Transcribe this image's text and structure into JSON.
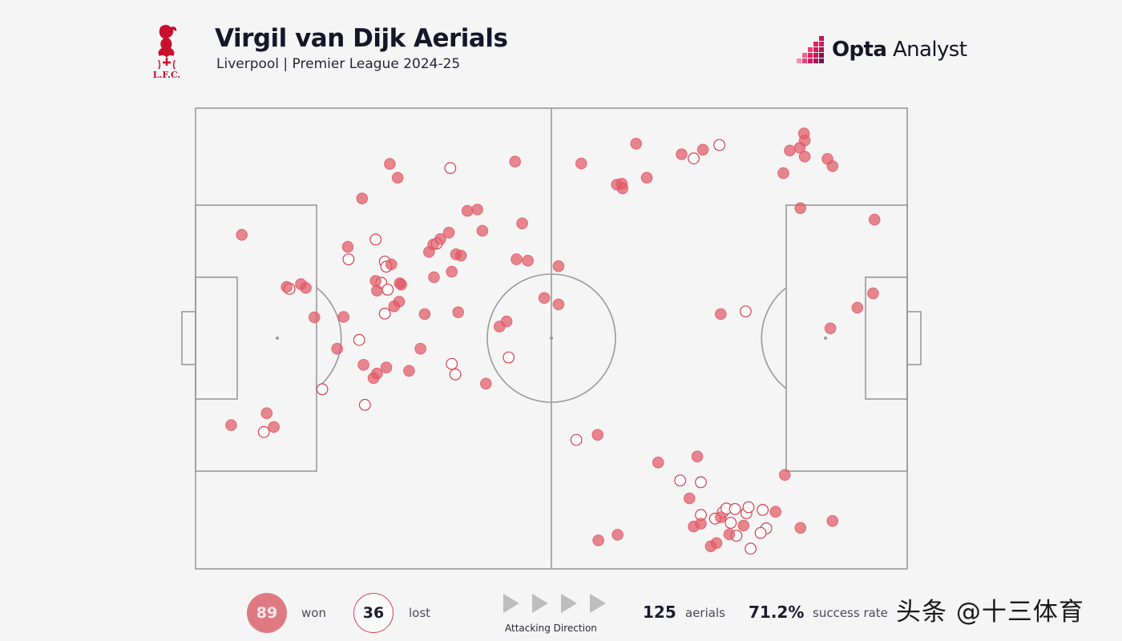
{
  "header": {
    "title": "Virgil van Dijk Aerials",
    "subtitle": "Liverpool | Premier League 2024-25",
    "club_logo_text": "L.F.C.",
    "brand_bold": "Opta",
    "brand_light": " Analyst"
  },
  "colors": {
    "won": "#e05a66",
    "lost_stroke": "#d6404c",
    "pitch_line": "#9a9a9a",
    "background": "#f5f5f5",
    "badge_won": "#e07a82"
  },
  "chart_data": {
    "type": "scatter",
    "axes_units": "pitch length/width percent (0-100), attacking left to right",
    "xlim": [
      0,
      100
    ],
    "ylim": [
      0,
      100
    ],
    "series": [
      {
        "name": "won",
        "points": [
          [
            27.5,
            6.5
          ],
          [
            38.8,
            12.8
          ],
          [
            68.8,
            5.0
          ],
          [
            66.2,
            10.0
          ],
          [
            69.2,
            11.0
          ],
          [
            38.2,
            14.8
          ],
          [
            39.0,
            15.5
          ],
          [
            45.4,
            16.7
          ],
          [
            52.2,
            19.9
          ],
          [
            30.1,
            21.4
          ],
          [
            19.6,
            23.4
          ],
          [
            37.5,
            25.3
          ],
          [
            43.0,
            27.9
          ],
          [
            42.0,
            28.6
          ],
          [
            45.3,
            20.8
          ],
          [
            55.7,
            23.6
          ],
          [
            57.6,
            25.5
          ],
          [
            56.3,
            26.8
          ],
          [
            58.6,
            25.0
          ],
          [
            39.6,
            25.5
          ],
          [
            38.0,
            28.7
          ],
          [
            33.9,
            27.5
          ],
          [
            38.3,
            28.9
          ],
          [
            12.1,
            27.3
          ],
          [
            15.1,
            28.4
          ],
          [
            57.0,
            30.0
          ],
          [
            52.2,
            31.6
          ],
          [
            44.7,
            32.2
          ],
          [
            31.2,
            32.8
          ],
          [
            29.6,
            33.4
          ],
          [
            36.7,
            33.5
          ],
          [
            28.4,
            34.4
          ],
          [
            27.0,
            35.6
          ],
          [
            31.7,
            36.6
          ],
          [
            32.0,
            37.3
          ],
          [
            44.3,
            36.9
          ],
          [
            26.6,
            40.3
          ],
          [
            22.3,
            38.2
          ],
          [
            22.0,
            39.6
          ],
          [
            35.5,
            36.0
          ],
          [
            59.8,
            40.8
          ],
          [
            11.6,
            44.9
          ],
          [
            25.0,
            45.9
          ],
          [
            42.6,
            51.0
          ],
          [
            47.4,
            42.7
          ],
          [
            46.3,
            43.7
          ],
          [
            32.8,
            45.1
          ],
          [
            33.1,
            46.7
          ],
          [
            41.2,
            49.0
          ],
          [
            12.0,
            54.2
          ],
          [
            34.3,
            51.0
          ],
          [
            16.6,
            59.2
          ],
          [
            16.4,
            59.9
          ],
          [
            7.7,
            61.9
          ],
          [
            17.4,
            60.0
          ],
          [
            15.1,
            63.4
          ],
          [
            10.0,
            68.3
          ],
          [
            9.0,
            71.3
          ],
          [
            44.7,
            73.8
          ],
          [
            14.1,
            82.6
          ],
          [
            21.7,
            85.0
          ],
          [
            9.2,
            83.5
          ],
          [
            8.6,
            84.9
          ],
          [
            10.5,
            85.6
          ],
          [
            5.5,
            85.5
          ],
          [
            7.0,
            85.6
          ],
          [
            11.0,
            88.8
          ],
          [
            12.6,
            89.5
          ],
          [
            47.8,
            89.2
          ],
          [
            43.3,
            93.0
          ],
          [
            24.2,
            95.4
          ],
          [
            40.2,
            95.2
          ],
          [
            70.9,
            56.5
          ],
          [
            76.9,
            65.0
          ],
          [
            75.6,
            70.5
          ],
          [
            84.7,
            69.4
          ],
          [
            90.2,
            71.0
          ],
          [
            93.8,
            56.6
          ],
          [
            92.6,
            59.3
          ],
          [
            95.1,
            72.4
          ],
          [
            90.6,
            77.0
          ],
          [
            90.8,
            70.0
          ],
          [
            88.8,
            73.8
          ],
          [
            92.5,
            75.0
          ],
          [
            94.4,
            73.2
          ],
          [
            89.6,
            89.5
          ],
          [
            91.1,
            85.0
          ],
          [
            87.6,
            81.5
          ],
          [
            79.6,
            82.8
          ]
        ]
      },
      {
        "name": "lost",
        "points": [
          [
            39.2,
            13.2
          ],
          [
            70.3,
            9.6
          ],
          [
            61.0,
            17.8
          ],
          [
            50.3,
            23.0
          ],
          [
            64.4,
            23.8
          ],
          [
            32.8,
            21.5
          ],
          [
            28.5,
            25.3
          ],
          [
            33.3,
            26.6
          ],
          [
            37.9,
            26.1
          ],
          [
            39.4,
            27.0
          ],
          [
            44.6,
            26.6
          ],
          [
            29.4,
            33.9
          ],
          [
            55.5,
            36.0
          ],
          [
            13.0,
            35.8
          ],
          [
            8.0,
            73.6
          ],
          [
            44.1,
            77.3
          ],
          [
            10.9,
            70.0
          ],
          [
            80.8,
            68.1
          ],
          [
            81.2,
            71.0
          ],
          [
            88.3,
            71.0
          ],
          [
            87.7,
            74.1
          ],
          [
            86.9,
            74.6
          ],
          [
            87.0,
            75.8
          ],
          [
            90.0,
            75.2
          ],
          [
            87.9,
            77.4
          ],
          [
            86.6,
            77.7
          ],
          [
            89.1,
            73.0
          ],
          [
            87.2,
            79.7
          ],
          [
            91.2,
            80.2
          ],
          [
            92.8,
            76.0
          ],
          [
            92.2,
            79.4
          ],
          [
            95.6,
            78.0
          ],
          [
            57.8,
            36.5
          ],
          [
            54.1,
            44.0
          ],
          [
            72.0,
            53.5
          ],
          [
            34.4,
            26.8
          ]
        ]
      }
    ],
    "summary": {
      "won": "89",
      "won_label": "won",
      "lost": "36",
      "lost_label": "lost",
      "total": "125",
      "total_label": "aerials",
      "success_rate": "71.2%",
      "success_label": "success rate"
    },
    "direction_label": "Attacking Direction",
    "grid": false,
    "legend": "bottom"
  },
  "watermark": "头条 @十三体育"
}
